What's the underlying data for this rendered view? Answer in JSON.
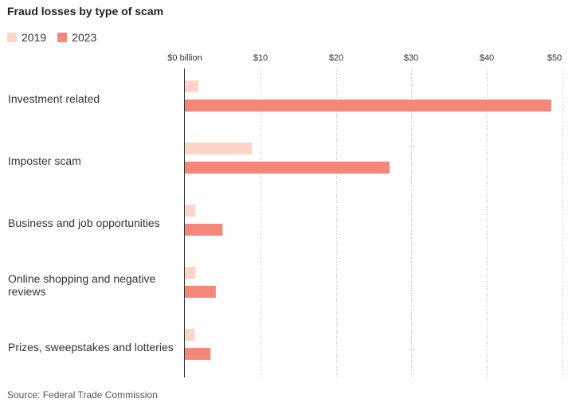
{
  "chart_data": {
    "type": "bar",
    "orientation": "horizontal",
    "title": "Fraud losses by type of scam",
    "categories": [
      "Investment related",
      "Imposter scam",
      "Business and job opportunities",
      "Online shopping and negative reviews",
      "Prizes, sweepstakes and lotteries"
    ],
    "series": [
      {
        "name": "2019",
        "color": "#fcd5c8",
        "values": [
          1.8,
          8.9,
          1.4,
          1.4,
          1.3
        ]
      },
      {
        "name": "2023",
        "color": "#f4877a",
        "values": [
          48.5,
          27.1,
          5.0,
          4.1,
          3.4
        ]
      }
    ],
    "xlim": [
      0,
      50
    ],
    "ticks": [
      0,
      10,
      20,
      30,
      40,
      50
    ],
    "tick_labels": [
      "$0 billion",
      "$10",
      "$20",
      "$30",
      "$40",
      "$50"
    ],
    "grid": true,
    "legend_position": "top-left",
    "source": "Source: Federal Trade Commission"
  }
}
